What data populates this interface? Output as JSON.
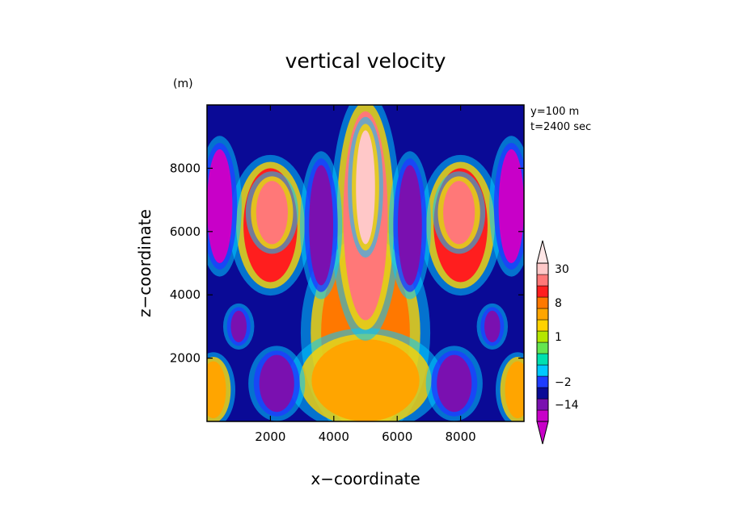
{
  "chart_data": {
    "type": "heatmap",
    "title": "vertical velocity",
    "xlabel": "x−coordinate",
    "ylabel": "z−coordinate",
    "x_unit": "(m)",
    "y_unit": "(m)",
    "info": [
      "y=100 m",
      "t=2400 sec"
    ],
    "xlim": [
      0,
      10000
    ],
    "ylim": [
      0,
      10000
    ],
    "xticks": [
      2000,
      4000,
      6000,
      8000
    ],
    "yticks": [
      2000,
      4000,
      6000,
      8000
    ],
    "xtick_labels": [
      "2000",
      "4000",
      "6000",
      "8000"
    ],
    "ytick_labels": [
      "2000",
      "4000",
      "6000",
      "8000"
    ],
    "colorbar": {
      "labels": [
        "30",
        "8",
        "1",
        "−2",
        "−14"
      ],
      "label_levels": [
        30,
        8,
        1,
        -2,
        -14
      ],
      "colors": [
        "#c800c8",
        "#7a10b0",
        "#0a0a96",
        "#1e3cff",
        "#00c8ff",
        "#00e0b0",
        "#64e650",
        "#b4e600",
        "#ffd200",
        "#ffa500",
        "#ff7800",
        "#ff1e1e",
        "#ff7878",
        "#ffc8c8"
      ],
      "levels": [
        -22,
        -14,
        -8,
        -2,
        -1,
        0,
        0.5,
        1,
        2,
        4,
        8,
        14,
        22,
        30
      ],
      "extend": "both"
    },
    "regions": [
      {
        "level": 8,
        "shape": "ellipse",
        "x": 5000,
        "z": 2800,
        "rx": 1400,
        "rz": 2800
      },
      {
        "level": 4,
        "shape": "ellipse",
        "x": 5000,
        "z": 1300,
        "rx": 1700,
        "rz": 1300
      },
      {
        "level": 22,
        "shape": "ellipse",
        "x": 5000,
        "z": 6500,
        "rx": 700,
        "rz": 3300
      },
      {
        "level": 30,
        "shape": "ellipse",
        "x": 5000,
        "z": 7400,
        "rx": 300,
        "rz": 1800
      },
      {
        "level": 14,
        "shape": "ellipse",
        "x": 2000,
        "z": 6200,
        "rx": 850,
        "rz": 1800
      },
      {
        "level": 22,
        "shape": "ellipse",
        "x": 2050,
        "z": 6600,
        "rx": 500,
        "rz": 1000
      },
      {
        "level": 14,
        "shape": "ellipse",
        "x": 8000,
        "z": 6200,
        "rx": 850,
        "rz": 1800
      },
      {
        "level": 22,
        "shape": "ellipse",
        "x": 7950,
        "z": 6600,
        "rx": 500,
        "rz": 1000
      },
      {
        "level": -14,
        "shape": "ellipse",
        "x": 3600,
        "z": 6200,
        "rx": 380,
        "rz": 1900
      },
      {
        "level": -14,
        "shape": "ellipse",
        "x": 6400,
        "z": 6200,
        "rx": 380,
        "rz": 1900
      },
      {
        "level": -22,
        "shape": "ellipse",
        "x": 400,
        "z": 6800,
        "rx": 400,
        "rz": 1800
      },
      {
        "level": -22,
        "shape": "ellipse",
        "x": 9600,
        "z": 6800,
        "rx": 400,
        "rz": 1800
      },
      {
        "level": -14,
        "shape": "ellipse",
        "x": 2200,
        "z": 1200,
        "rx": 550,
        "rz": 900
      },
      {
        "level": -14,
        "shape": "ellipse",
        "x": 7800,
        "z": 1200,
        "rx": 550,
        "rz": 900
      },
      {
        "level": -14,
        "shape": "ellipse",
        "x": 1000,
        "z": 3000,
        "rx": 250,
        "rz": 500
      },
      {
        "level": -14,
        "shape": "ellipse",
        "x": 9000,
        "z": 3000,
        "rx": 250,
        "rz": 500
      },
      {
        "level": 4,
        "shape": "ellipse",
        "x": 200,
        "z": 1000,
        "rx": 400,
        "rz": 900
      },
      {
        "level": 4,
        "shape": "ellipse",
        "x": 9800,
        "z": 1000,
        "rx": 400,
        "rz": 900
      }
    ]
  }
}
